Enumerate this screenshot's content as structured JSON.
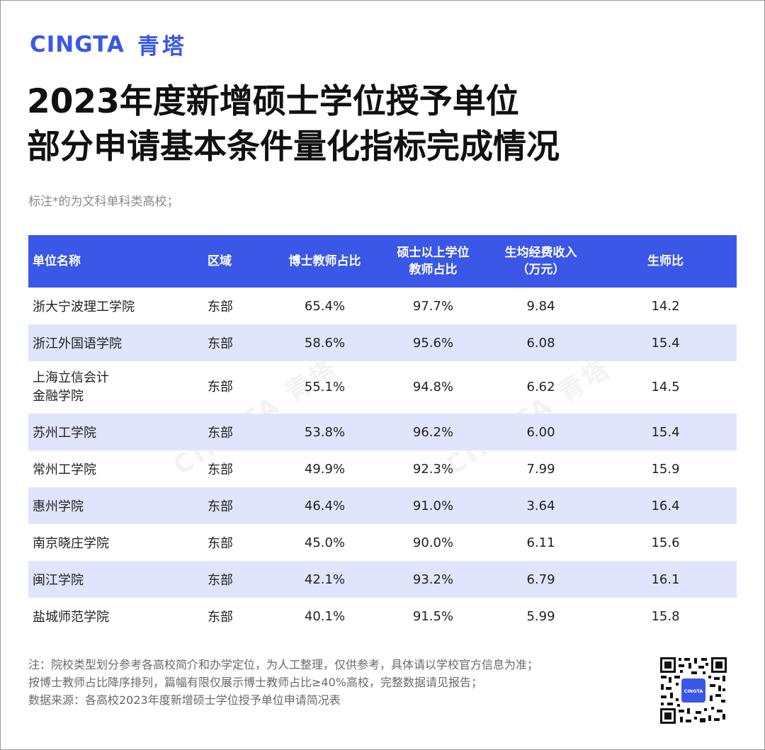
{
  "brand": {
    "en": "CINGTA",
    "cn": "青塔"
  },
  "title_lines": [
    "2023年度新增硕士学位授予单位",
    "部分申请基本条件量化指标完成情况"
  ],
  "subnote": "标注*的为文科单科类高校；",
  "table": {
    "headers": {
      "name": "单位名称",
      "region": "区域",
      "phd": "博士教师占比",
      "master_l1": "硕士以上学位",
      "master_l2": "教师占比",
      "fund_l1": "生均经费收入",
      "fund_l2": "（万元）",
      "ratio": "生师比"
    },
    "rows": [
      {
        "name": "浙大宁波理工学院",
        "region": "东部",
        "phd": "65.4%",
        "master": "97.7%",
        "fund": "9.84",
        "ratio": "14.2"
      },
      {
        "name": "浙江外国语学院",
        "region": "东部",
        "phd": "58.6%",
        "master": "95.6%",
        "fund": "6.08",
        "ratio": "15.4"
      },
      {
        "name_l1": "上海立信会计",
        "name_l2": "金融学院",
        "region": "东部",
        "phd": "55.1%",
        "master": "94.8%",
        "fund": "6.62",
        "ratio": "14.5"
      },
      {
        "name": "苏州工学院",
        "region": "东部",
        "phd": "53.8%",
        "master": "96.2%",
        "fund": "6.00",
        "ratio": "15.4"
      },
      {
        "name": "常州工学院",
        "region": "东部",
        "phd": "49.9%",
        "master": "92.3%",
        "fund": "7.99",
        "ratio": "15.9"
      },
      {
        "name": "惠州学院",
        "region": "东部",
        "phd": "46.4%",
        "master": "91.0%",
        "fund": "3.64",
        "ratio": "16.4"
      },
      {
        "name": "南京晓庄学院",
        "region": "东部",
        "phd": "45.0%",
        "master": "90.0%",
        "fund": "6.11",
        "ratio": "15.6"
      },
      {
        "name": "闽江学院",
        "region": "东部",
        "phd": "42.1%",
        "master": "93.2%",
        "fund": "6.79",
        "ratio": "16.1"
      },
      {
        "name": "盐城师范学院",
        "region": "东部",
        "phd": "40.1%",
        "master": "91.5%",
        "fund": "5.99",
        "ratio": "15.8"
      }
    ]
  },
  "watermark": "CINGTA 青塔",
  "notes": [
    "注：院校类型划分参考各高校简介和办学定位，为人工整理，仅供参考，具体请以学校官方信息为准；",
    "按博士教师占比降序排列，篇幅有限仅展示博士教师占比≥40%高校，完整数据请见报告；",
    "数据来源：各高校2023年度新增硕士学位授予单位申请简况表"
  ],
  "qr_label": "CINGTA",
  "colors": {
    "accent": "#3a57e8",
    "row_alt": "#dfe5fa",
    "note_text": "#6a6a6a"
  },
  "icons": {
    "qr": "qr-code-icon"
  }
}
